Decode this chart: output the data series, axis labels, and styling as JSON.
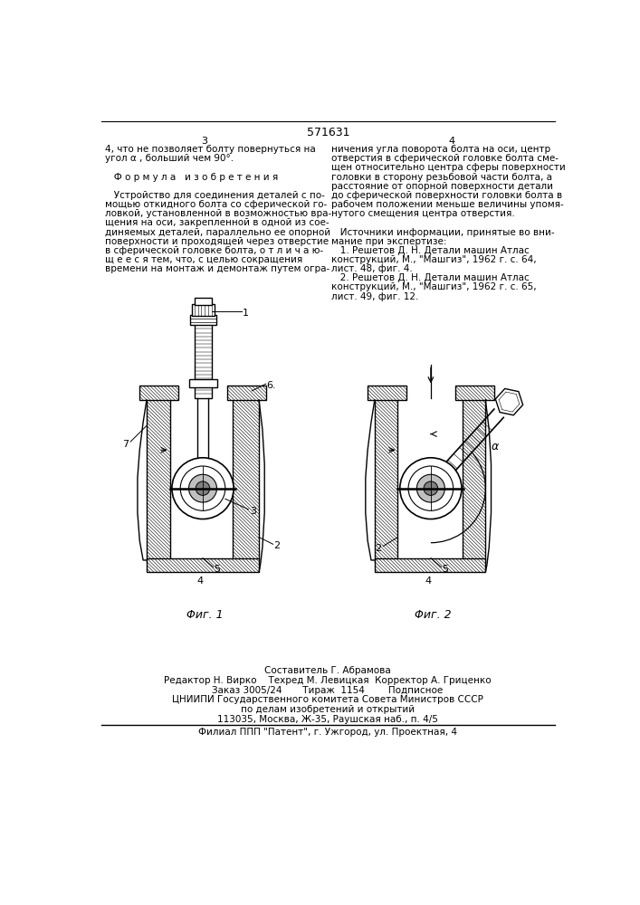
{
  "patent_number": "571631",
  "page_left": "3",
  "page_right": "4",
  "left_col_text_lines": [
    "4, что не позволяет болту повернуться на",
    "угол α , больший чем 90°.",
    "",
    "   Ф о р м у л а   и з о б р е т е н и я",
    "",
    "   Устройство для соединения деталей с по-",
    "мощью откидного болта со сферической го-",
    "ловкой, установленной в возможностью вра-",
    "щения на оси, закрепленной в одной из сое-",
    "диняемых деталей, параллельно ее опорной",
    "поверхности и проходящей через отверстие",
    "в сферической головке болта, о т л и ч а ю-",
    "щ е е с я тем, что, с целью сокращения",
    "времени на монтаж и демонтаж путем огра-"
  ],
  "right_col_text_lines": [
    "ничения угла поворота болта на оси, центр",
    "отверстия в сферической головке болта сме-",
    "щен относительно центра сферы поверхности",
    "головки в сторону резьбовой части болта, а",
    "расстояние от опорной поверхности детали",
    "до сферической поверхности головки болта в",
    "рабочем положении меньше величины упомя-",
    "нутого смещения центра отверстия.",
    "",
    "   Источники информации, принятые во вни-",
    "мание при экспертизе:",
    "   1. Решетов Д. Н. Детали машин Атлас",
    "конструкций, М., \"Машгиз\", 1962 г. с. 64,",
    "лист. 48, фиг. 4.",
    "   2. Решетов Д. Н. Детали машин Атлас",
    "конструкций, М., \"Машгиз\", 1962 г. с. 65,",
    "лист. 49, фиг. 12."
  ],
  "fig1_caption": "Φиг. 1",
  "fig2_caption": "Φиг. 2",
  "footer_lines": [
    "Составитель Г. Абрамова",
    "Редактор Н. Вирко    Техред М. Левицкая  Корректор А. Гриценко",
    "Заказ 3005/24       Тираж  1154        Подписное",
    "ЦНИИПИ Государственного комитета Совета Министров СССР",
    "по делам изобретений и открытий",
    "113035, Москва, Ж-35, Раушская наб., п. 4/5",
    "Филиал ППП \"Патент\", г. Ужгород, ул. Проектная, 4"
  ],
  "bg_color": "#ffffff"
}
